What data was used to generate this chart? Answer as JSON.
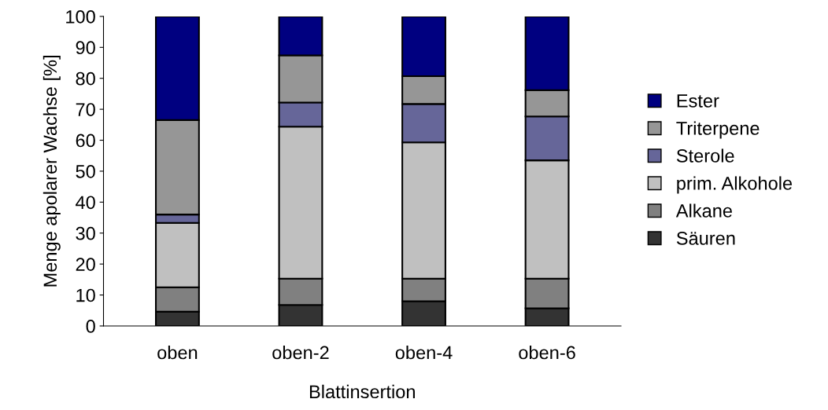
{
  "chart_data": {
    "type": "bar",
    "stacked": true,
    "xlabel": "Blattinsertion",
    "ylabel": "Menge apolarer Wachse [%]",
    "categories": [
      "oben",
      "oben-2",
      "oben-4",
      "oben-6"
    ],
    "series": [
      {
        "name": "Säuren",
        "color": "#333333",
        "values": [
          4.6,
          6.8,
          8.0,
          5.7
        ]
      },
      {
        "name": "Alkane",
        "color": "#808080",
        "values": [
          7.9,
          8.5,
          7.3,
          9.6
        ]
      },
      {
        "name": "prim. Alkohole",
        "color": "#c0c0c0",
        "values": [
          20.8,
          49.1,
          44.0,
          38.2
        ]
      },
      {
        "name": "Sterole",
        "color": "#666699",
        "values": [
          2.7,
          7.8,
          12.4,
          14.2
        ]
      },
      {
        "name": "Triterpene",
        "color": "#969696",
        "values": [
          30.5,
          15.2,
          9.0,
          8.5
        ]
      },
      {
        "name": "Ester",
        "color": "#000080",
        "values": [
          33.5,
          12.6,
          19.3,
          23.8
        ]
      }
    ],
    "ylim": [
      0,
      100
    ],
    "yticks": [
      0,
      10,
      20,
      30,
      40,
      50,
      60,
      70,
      80,
      90,
      100
    ],
    "grid": false,
    "legend": "right"
  }
}
